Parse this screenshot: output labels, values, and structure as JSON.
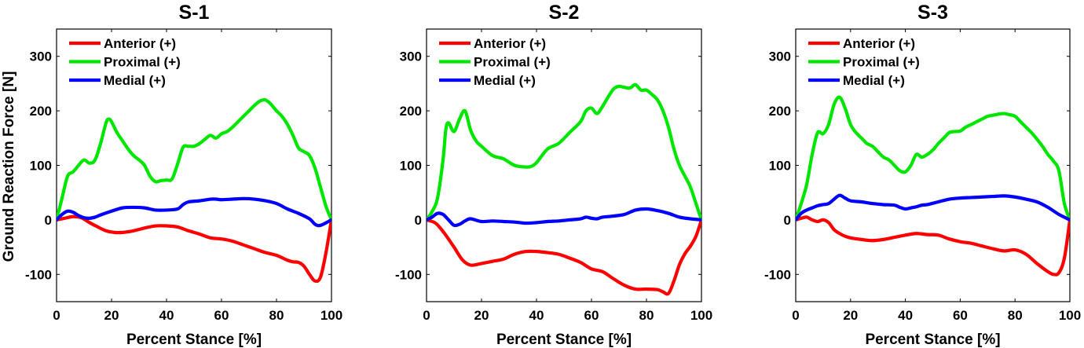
{
  "y_axis_label": "Ground Reaction Force [N]",
  "chart_data": [
    {
      "type": "line",
      "title": "S-1",
      "xlabel": "Percent Stance [%]",
      "ylabel": "Ground Reaction Force [N]",
      "xlim": [
        0,
        100
      ],
      "ylim": [
        -150,
        350
      ],
      "xticks": [
        0,
        20,
        40,
        60,
        80,
        100
      ],
      "yticks": [
        -100,
        0,
        100,
        200,
        300
      ],
      "grid": false,
      "legend": "top-left",
      "series": [
        {
          "name": "Anterior (+)",
          "color": "#ff0000",
          "x": [
            0,
            3,
            6,
            9,
            12,
            15,
            18,
            21,
            24,
            28,
            32,
            36,
            40,
            44,
            48,
            52,
            56,
            60,
            64,
            68,
            72,
            76,
            80,
            84,
            86,
            88,
            90,
            92,
            94,
            96,
            98,
            100
          ],
          "y": [
            0,
            3,
            6,
            4,
            -5,
            -13,
            -20,
            -23,
            -23,
            -20,
            -15,
            -11,
            -11,
            -13,
            -20,
            -26,
            -33,
            -35,
            -39,
            -46,
            -53,
            -60,
            -65,
            -74,
            -77,
            -78,
            -85,
            -100,
            -112,
            -105,
            -60,
            0
          ]
        },
        {
          "name": "Proximal (+)",
          "color": "#00e600",
          "x": [
            0,
            2,
            4,
            6,
            8,
            10,
            12,
            14,
            16,
            18,
            19,
            20,
            22,
            24,
            26,
            28,
            30,
            32,
            34,
            36,
            38,
            40,
            42,
            44,
            46,
            48,
            50,
            52,
            54,
            56,
            58,
            60,
            62,
            64,
            66,
            68,
            70,
            72,
            74,
            76,
            78,
            80,
            82,
            84,
            86,
            88,
            90,
            92,
            94,
            96,
            98,
            100
          ],
          "y": [
            0,
            40,
            80,
            88,
            100,
            110,
            104,
            110,
            140,
            178,
            185,
            180,
            160,
            145,
            130,
            118,
            110,
            100,
            80,
            70,
            72,
            73,
            75,
            102,
            133,
            135,
            135,
            140,
            148,
            155,
            150,
            158,
            162,
            170,
            180,
            190,
            200,
            210,
            218,
            220,
            212,
            200,
            190,
            175,
            155,
            132,
            125,
            118,
            95,
            60,
            25,
            0
          ]
        },
        {
          "name": "Medial (+)",
          "color": "#0000ff",
          "x": [
            0,
            2,
            4,
            6,
            8,
            10,
            12,
            14,
            16,
            20,
            24,
            28,
            32,
            36,
            40,
            44,
            46,
            48,
            52,
            56,
            58,
            60,
            64,
            68,
            72,
            76,
            80,
            84,
            88,
            92,
            94,
            96,
            100
          ],
          "y": [
            0,
            10,
            16,
            14,
            8,
            4,
            3,
            5,
            9,
            16,
            22,
            23,
            22,
            18,
            18,
            20,
            28,
            33,
            35,
            38,
            38,
            37,
            38,
            39,
            38,
            35,
            30,
            20,
            12,
            2,
            -8,
            -10,
            0
          ]
        }
      ]
    },
    {
      "type": "line",
      "title": "S-2",
      "xlabel": "Percent Stance [%]",
      "ylabel": "",
      "xlim": [
        0,
        100
      ],
      "ylim": [
        -150,
        350
      ],
      "xticks": [
        0,
        20,
        40,
        60,
        80,
        100
      ],
      "yticks": [
        -100,
        0,
        100,
        200,
        300
      ],
      "grid": false,
      "legend": "top-left",
      "series": [
        {
          "name": "Anterior (+)",
          "color": "#ff0000",
          "x": [
            0,
            3,
            5,
            7,
            10,
            13,
            16,
            20,
            24,
            28,
            32,
            36,
            40,
            44,
            48,
            52,
            56,
            60,
            64,
            68,
            72,
            76,
            80,
            84,
            86,
            88,
            90,
            92,
            94,
            96,
            98,
            100
          ],
          "y": [
            0,
            -5,
            -15,
            -28,
            -50,
            -73,
            -83,
            -80,
            -76,
            -72,
            -63,
            -58,
            -58,
            -60,
            -63,
            -70,
            -78,
            -90,
            -95,
            -108,
            -120,
            -127,
            -127,
            -128,
            -132,
            -135,
            -112,
            -82,
            -62,
            -48,
            -30,
            0
          ]
        },
        {
          "name": "Proximal (+)",
          "color": "#00e600",
          "x": [
            0,
            2,
            4,
            6,
            7,
            8,
            10,
            12,
            14,
            16,
            18,
            20,
            24,
            28,
            32,
            36,
            38,
            40,
            44,
            48,
            52,
            56,
            58,
            60,
            62,
            64,
            66,
            68,
            70,
            72,
            74,
            76,
            78,
            80,
            82,
            84,
            86,
            88,
            90,
            92,
            94,
            96,
            98,
            100
          ],
          "y": [
            0,
            15,
            40,
            110,
            165,
            178,
            162,
            185,
            200,
            165,
            145,
            135,
            118,
            112,
            100,
            97,
            98,
            105,
            130,
            140,
            160,
            180,
            200,
            205,
            195,
            208,
            225,
            240,
            245,
            243,
            242,
            248,
            238,
            238,
            230,
            220,
            200,
            170,
            130,
            100,
            80,
            60,
            30,
            0
          ]
        },
        {
          "name": "Medial (+)",
          "color": "#0000ff",
          "x": [
            0,
            2,
            4,
            6,
            8,
            10,
            12,
            14,
            16,
            20,
            24,
            28,
            32,
            36,
            40,
            44,
            48,
            52,
            56,
            58,
            60,
            62,
            64,
            68,
            72,
            76,
            80,
            84,
            88,
            92,
            96,
            100
          ],
          "y": [
            0,
            5,
            12,
            10,
            0,
            -10,
            -8,
            -2,
            2,
            -3,
            -2,
            -3,
            -4,
            -6,
            -5,
            -3,
            -2,
            0,
            2,
            5,
            3,
            2,
            5,
            7,
            10,
            18,
            20,
            17,
            12,
            5,
            2,
            0
          ]
        }
      ]
    },
    {
      "type": "line",
      "title": "S-3",
      "xlabel": "Percent Stance [%]",
      "ylabel": "",
      "xlim": [
        0,
        100
      ],
      "ylim": [
        -150,
        350
      ],
      "xticks": [
        0,
        20,
        40,
        60,
        80,
        100
      ],
      "yticks": [
        -100,
        0,
        100,
        200,
        300
      ],
      "grid": false,
      "legend": "top-left",
      "series": [
        {
          "name": "Anterior (+)",
          "color": "#ff0000",
          "x": [
            0,
            2,
            4,
            6,
            8,
            10,
            12,
            14,
            16,
            18,
            20,
            24,
            28,
            32,
            36,
            40,
            44,
            48,
            52,
            56,
            60,
            64,
            68,
            72,
            76,
            80,
            84,
            88,
            92,
            94,
            96,
            98,
            100
          ],
          "y": [
            0,
            3,
            5,
            0,
            -3,
            0,
            -5,
            -18,
            -25,
            -30,
            -33,
            -36,
            -38,
            -36,
            -32,
            -28,
            -25,
            -27,
            -28,
            -35,
            -40,
            -43,
            -48,
            -53,
            -57,
            -55,
            -63,
            -80,
            -95,
            -100,
            -97,
            -70,
            0
          ]
        },
        {
          "name": "Proximal (+)",
          "color": "#00e600",
          "x": [
            0,
            2,
            4,
            6,
            8,
            10,
            12,
            14,
            16,
            18,
            20,
            22,
            24,
            26,
            28,
            30,
            32,
            34,
            36,
            38,
            40,
            42,
            44,
            46,
            48,
            50,
            52,
            54,
            56,
            58,
            60,
            62,
            64,
            66,
            68,
            70,
            72,
            74,
            76,
            78,
            80,
            82,
            84,
            86,
            88,
            90,
            92,
            94,
            96,
            98,
            100
          ],
          "y": [
            0,
            30,
            65,
            120,
            160,
            158,
            175,
            212,
            225,
            205,
            175,
            160,
            150,
            140,
            135,
            125,
            115,
            110,
            100,
            90,
            88,
            100,
            120,
            115,
            120,
            128,
            140,
            150,
            160,
            162,
            163,
            170,
            175,
            180,
            185,
            190,
            192,
            194,
            195,
            193,
            190,
            180,
            170,
            160,
            148,
            135,
            120,
            108,
            90,
            30,
            0
          ]
        },
        {
          "name": "Medial (+)",
          "color": "#0000ff",
          "x": [
            0,
            2,
            4,
            6,
            8,
            10,
            12,
            14,
            16,
            18,
            20,
            24,
            28,
            32,
            36,
            38,
            40,
            42,
            44,
            46,
            48,
            52,
            56,
            60,
            64,
            68,
            72,
            76,
            80,
            84,
            88,
            92,
            96,
            100
          ],
          "y": [
            0,
            12,
            18,
            22,
            26,
            28,
            30,
            38,
            45,
            40,
            35,
            33,
            30,
            28,
            27,
            23,
            20,
            22,
            24,
            27,
            28,
            33,
            38,
            40,
            41,
            42,
            43,
            44,
            42,
            38,
            33,
            23,
            10,
            0
          ]
        }
      ]
    }
  ]
}
